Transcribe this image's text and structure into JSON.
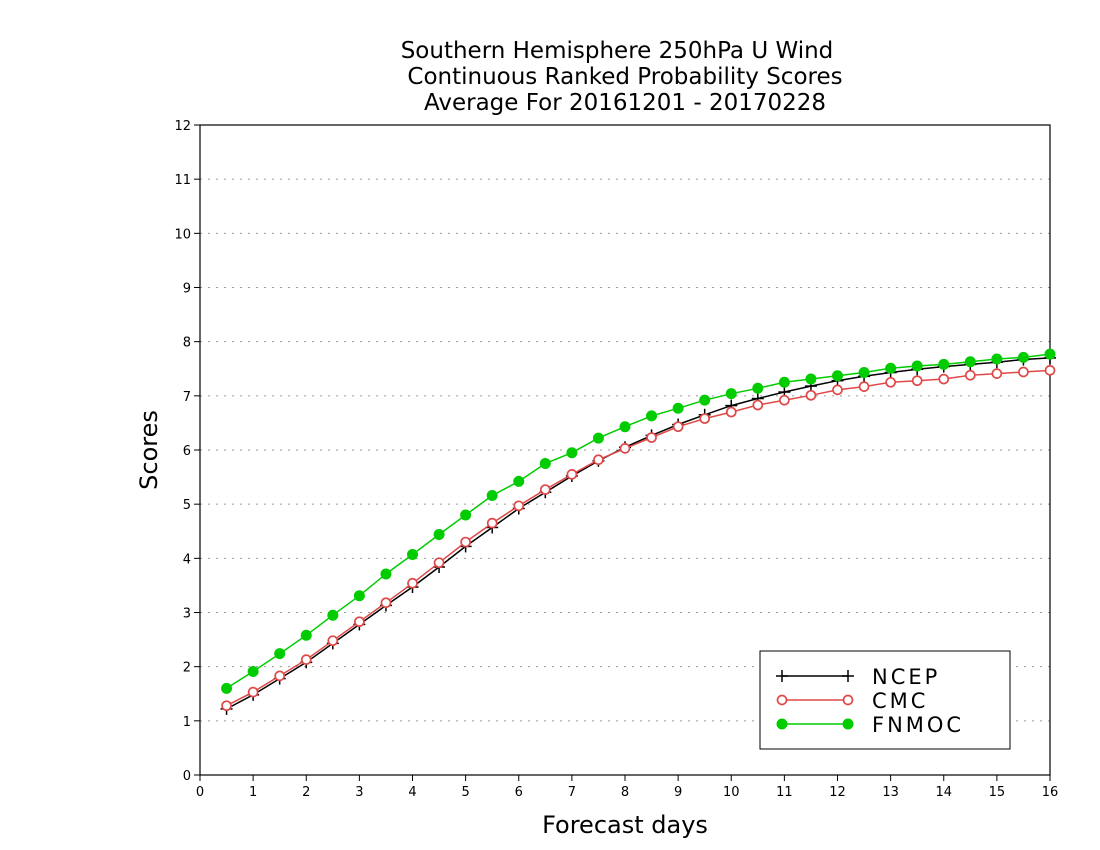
{
  "chart_data": {
    "type": "line",
    "title_lines": [
      "Southern Hemisphere 250hPa U Wind",
      "Continuous Ranked Probability Scores",
      "Average For 20161201 - 20170228"
    ],
    "xlabel": "Forecast days",
    "ylabel": "Scores",
    "xlim": [
      0,
      16
    ],
    "ylim": [
      0,
      12
    ],
    "x_ticks": [
      "0",
      "1",
      "2",
      "3",
      "4",
      "5",
      "6",
      "7",
      "8",
      "9",
      "10",
      "11",
      "12",
      "13",
      "14",
      "15",
      "16"
    ],
    "y_ticks": [
      "0",
      "1",
      "2",
      "3",
      "4",
      "5",
      "6",
      "7",
      "8",
      "9",
      "10",
      "11",
      "12"
    ],
    "grid": true,
    "legend_position": "bottom-right",
    "x": [
      0.5,
      1,
      1.5,
      2,
      2.5,
      3,
      3.5,
      4,
      4.5,
      5,
      5.5,
      6,
      6.5,
      7,
      7.5,
      8,
      8.5,
      9,
      9.5,
      10,
      10.5,
      11,
      11.5,
      12,
      12.5,
      13,
      13.5,
      14,
      14.5,
      15,
      15.5,
      16
    ],
    "series": [
      {
        "name": "NCEP",
        "color": "#000000",
        "marker": "plus",
        "values": [
          1.22,
          1.48,
          1.78,
          2.08,
          2.43,
          2.78,
          3.13,
          3.47,
          3.84,
          4.22,
          4.57,
          4.92,
          5.22,
          5.52,
          5.8,
          6.05,
          6.27,
          6.47,
          6.65,
          6.82,
          6.95,
          7.07,
          7.18,
          7.28,
          7.36,
          7.43,
          7.49,
          7.54,
          7.58,
          7.62,
          7.67,
          7.7
        ]
      },
      {
        "name": "CMC",
        "color": "#e04848",
        "marker": "open-circle",
        "values": [
          1.28,
          1.53,
          1.83,
          2.13,
          2.48,
          2.83,
          3.18,
          3.54,
          3.92,
          4.3,
          4.65,
          4.97,
          5.27,
          5.55,
          5.82,
          6.03,
          6.23,
          6.43,
          6.58,
          6.7,
          6.83,
          6.92,
          7.01,
          7.11,
          7.17,
          7.25,
          7.28,
          7.31,
          7.38,
          7.41,
          7.44,
          7.47
        ]
      },
      {
        "name": "FNMOC",
        "color": "#00cc00",
        "marker": "filled-circle",
        "values": [
          1.6,
          1.91,
          2.24,
          2.58,
          2.95,
          3.31,
          3.71,
          4.07,
          4.44,
          4.8,
          5.16,
          5.42,
          5.75,
          5.95,
          6.22,
          6.43,
          6.63,
          6.77,
          6.92,
          7.04,
          7.14,
          7.25,
          7.31,
          7.37,
          7.43,
          7.51,
          7.55,
          7.58,
          7.63,
          7.68,
          7.71,
          7.77
        ]
      }
    ]
  }
}
